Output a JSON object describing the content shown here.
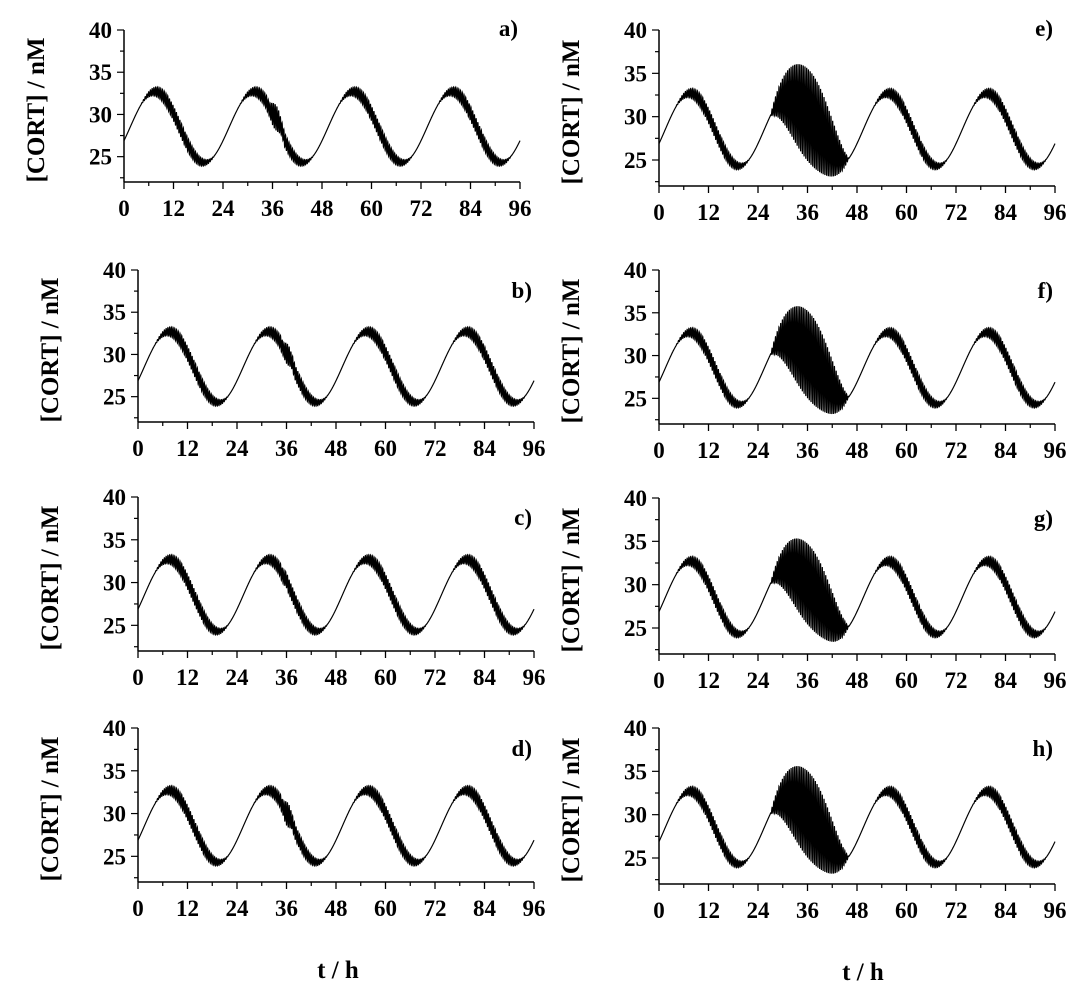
{
  "figure": {
    "xlabel": "t / h"
  },
  "chart_data": [
    {
      "panel": "a)",
      "type": "line",
      "xlabel": "",
      "ylabel": "[CORT] / nM",
      "xlim": [
        0,
        96
      ],
      "ylim": [
        22,
        40
      ],
      "xticks": [
        0,
        12,
        24,
        36,
        48,
        60,
        72,
        84,
        96
      ],
      "yticks": [
        25,
        30,
        35,
        40
      ],
      "series": [
        {
          "baseline_min": 24.3,
          "baseline_max": 32.7,
          "period_h": 24,
          "peak_h": 7.5,
          "perturbation": {
            "start_h": 34.5,
            "end_h": 39,
            "max": 32.0,
            "min": 28.0
          }
        }
      ]
    },
    {
      "panel": "b)",
      "type": "line",
      "xlabel": "",
      "ylabel": "[CORT] / nM",
      "xlim": [
        0,
        96
      ],
      "ylim": [
        22,
        40
      ],
      "xticks": [
        0,
        12,
        24,
        36,
        48,
        60,
        72,
        84,
        96
      ],
      "yticks": [
        25,
        30,
        35,
        40
      ],
      "series": [
        {
          "baseline_min": 24.3,
          "baseline_max": 32.7,
          "period_h": 24,
          "peak_h": 7.5,
          "perturbation": {
            "start_h": 34.5,
            "end_h": 38,
            "max": 31.8,
            "min": 28.5
          }
        }
      ]
    },
    {
      "panel": "c)",
      "type": "line",
      "xlabel": "",
      "ylabel": "[CORT] / nM",
      "xlim": [
        0,
        96
      ],
      "ylim": [
        22,
        40
      ],
      "xticks": [
        0,
        12,
        24,
        36,
        48,
        60,
        72,
        84,
        96
      ],
      "yticks": [
        25,
        30,
        35,
        40
      ],
      "series": [
        {
          "baseline_min": 24.3,
          "baseline_max": 32.7,
          "period_h": 24,
          "peak_h": 7.5,
          "perturbation": {
            "start_h": 34.5,
            "end_h": 36.5,
            "max": 31.5,
            "min": 29.5
          }
        }
      ]
    },
    {
      "panel": "d)",
      "type": "line",
      "xlabel": "t / h",
      "ylabel": "[CORT] / nM",
      "xlim": [
        0,
        96
      ],
      "ylim": [
        22,
        40
      ],
      "xticks": [
        0,
        12,
        24,
        36,
        48,
        60,
        72,
        84,
        96
      ],
      "yticks": [
        25,
        30,
        35,
        40
      ],
      "series": [
        {
          "baseline_min": 24.3,
          "baseline_max": 32.7,
          "period_h": 24,
          "peak_h": 7.5,
          "perturbation": {
            "start_h": 34.5,
            "end_h": 38,
            "max": 31.8,
            "min": 28.0
          }
        }
      ]
    },
    {
      "panel": "e)",
      "type": "line",
      "xlabel": "",
      "ylabel": "[CORT] / nM",
      "xlim": [
        0,
        96
      ],
      "ylim": [
        22,
        40
      ],
      "xticks": [
        0,
        12,
        24,
        36,
        48,
        60,
        72,
        84,
        96
      ],
      "yticks": [
        25,
        30,
        35,
        40
      ],
      "series": [
        {
          "baseline_min": 24.3,
          "baseline_max": 32.7,
          "period_h": 24,
          "peak_h": 7.5,
          "perturbation": {
            "start_h": 27,
            "end_h": 46,
            "max": 37.5,
            "min": 23.2
          }
        }
      ]
    },
    {
      "panel": "f)",
      "type": "line",
      "xlabel": "",
      "ylabel": "[CORT] / nM",
      "xlim": [
        0,
        96
      ],
      "ylim": [
        22,
        40
      ],
      "xticks": [
        0,
        12,
        24,
        36,
        48,
        60,
        72,
        84,
        96
      ],
      "yticks": [
        25,
        30,
        35,
        40
      ],
      "series": [
        {
          "baseline_min": 24.3,
          "baseline_max": 32.7,
          "period_h": 24,
          "peak_h": 7.5,
          "perturbation": {
            "start_h": 27,
            "end_h": 46,
            "max": 37.0,
            "min": 23.3
          }
        }
      ]
    },
    {
      "panel": "g)",
      "type": "line",
      "xlabel": "",
      "ylabel": "[CORT] / nM",
      "xlim": [
        0,
        96
      ],
      "ylim": [
        22,
        40
      ],
      "xticks": [
        0,
        12,
        24,
        36,
        48,
        60,
        72,
        84,
        96
      ],
      "yticks": [
        25,
        30,
        35,
        40
      ],
      "series": [
        {
          "baseline_min": 24.3,
          "baseline_max": 32.7,
          "period_h": 24,
          "peak_h": 7.5,
          "perturbation": {
            "start_h": 27,
            "end_h": 46,
            "max": 36.3,
            "min": 23.8
          }
        }
      ]
    },
    {
      "panel": "h)",
      "type": "line",
      "xlabel": "t / h",
      "ylabel": "[CORT] / nM",
      "xlim": [
        0,
        96
      ],
      "ylim": [
        22,
        40
      ],
      "xticks": [
        0,
        12,
        24,
        36,
        48,
        60,
        72,
        84,
        96
      ],
      "yticks": [
        25,
        30,
        35,
        40
      ],
      "series": [
        {
          "baseline_min": 24.3,
          "baseline_max": 32.7,
          "period_h": 24,
          "peak_h": 7.5,
          "perturbation": {
            "start_h": 27,
            "end_h": 46,
            "max": 36.7,
            "min": 23.3
          }
        }
      ]
    }
  ]
}
